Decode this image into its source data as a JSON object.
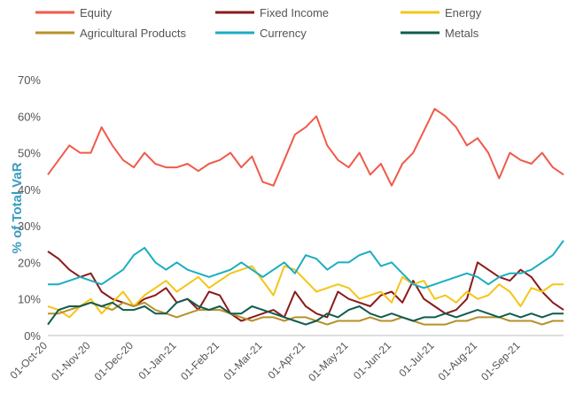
{
  "chart_data": {
    "type": "line",
    "y_label": "% of Total VaR",
    "categories": [
      "01-Oct-20",
      null,
      null,
      null,
      "01-Nov-20",
      null,
      null,
      null,
      "01-Dec-20",
      null,
      null,
      null,
      "01-Jan-21",
      null,
      null,
      null,
      "01-Feb-21",
      null,
      null,
      null,
      "01-Mar-21",
      null,
      null,
      null,
      "01-Apr-21",
      null,
      null,
      null,
      "01-May-21",
      null,
      null,
      null,
      "01-Jun-21",
      null,
      null,
      null,
      "01-Jul-21",
      null,
      null,
      null,
      "01-Aug-21",
      null,
      null,
      null,
      "01-Sep-21",
      null,
      null,
      null,
      null
    ],
    "ylim": [
      0,
      70
    ],
    "yticks": [
      {
        "value": 0,
        "label": "0%"
      },
      {
        "value": 10,
        "label": "10%"
      },
      {
        "value": 20,
        "label": "20%"
      },
      {
        "value": 30,
        "label": "30%"
      },
      {
        "value": 40,
        "label": "40%"
      },
      {
        "value": 50,
        "label": "50%"
      },
      {
        "value": 60,
        "label": "60%"
      },
      {
        "value": 70,
        "label": "70%"
      }
    ],
    "grid": false,
    "series": [
      {
        "name": "Equity",
        "color": "#f05a4a",
        "values": [
          44,
          48,
          52,
          50,
          50,
          57,
          52,
          48,
          46,
          50,
          47,
          46,
          46,
          47,
          45,
          47,
          48,
          50,
          46,
          49,
          42,
          41,
          48,
          55,
          57,
          60,
          52,
          48,
          46,
          50,
          44,
          47,
          41,
          47,
          50,
          56,
          62,
          60,
          57,
          52,
          54,
          50,
          43,
          50,
          48,
          47,
          50,
          46,
          44
        ]
      },
      {
        "name": "Fixed Income",
        "color": "#8b1a1a",
        "values": [
          23,
          21,
          18,
          16,
          17,
          12,
          10,
          9,
          8,
          10,
          11,
          13,
          9,
          10,
          7,
          12,
          11,
          6,
          4,
          5,
          6,
          7,
          5,
          12,
          8,
          6,
          5,
          12,
          10,
          9,
          8,
          11,
          12,
          9,
          15,
          10,
          8,
          6,
          7,
          10,
          20,
          18,
          16,
          15,
          18,
          16,
          12,
          9,
          7
        ]
      },
      {
        "name": "Energy",
        "color": "#f5c518",
        "values": [
          8,
          7,
          5,
          8,
          10,
          6,
          9,
          12,
          8,
          11,
          13,
          15,
          12,
          14,
          16,
          13,
          15,
          17,
          18,
          19,
          15,
          11,
          19,
          18,
          15,
          12,
          13,
          14,
          13,
          10,
          11,
          12,
          9,
          16,
          14,
          15,
          10,
          11,
          9,
          12,
          10,
          11,
          14,
          12,
          8,
          13,
          12,
          14,
          14
        ]
      },
      {
        "name": "Agricultural Products",
        "color": "#b8902a",
        "values": [
          6,
          6,
          7,
          8,
          9,
          8,
          7,
          9,
          8,
          9,
          7,
          6,
          5,
          6,
          7,
          7,
          7,
          6,
          5,
          4,
          5,
          5,
          4,
          5,
          5,
          4,
          3,
          4,
          4,
          4,
          5,
          4,
          4,
          5,
          4,
          3,
          3,
          3,
          4,
          4,
          5,
          5,
          5,
          4,
          4,
          4,
          3,
          4,
          4
        ]
      },
      {
        "name": "Currency",
        "color": "#1aaec0",
        "values": [
          14,
          14,
          15,
          16,
          15,
          14,
          16,
          18,
          22,
          24,
          20,
          18,
          20,
          18,
          17,
          16,
          17,
          18,
          20,
          18,
          16,
          18,
          20,
          17,
          22,
          21,
          18,
          20,
          20,
          22,
          23,
          19,
          20,
          17,
          14,
          13,
          14,
          15,
          16,
          17,
          16,
          14,
          16,
          17,
          17,
          18,
          20,
          22,
          26
        ]
      },
      {
        "name": "Metals",
        "color": "#0f5c4f",
        "values": [
          3,
          7,
          8,
          8,
          9,
          8,
          9,
          7,
          7,
          8,
          6,
          6,
          9,
          10,
          8,
          7,
          8,
          6,
          6,
          8,
          7,
          6,
          5,
          4,
          3,
          4,
          6,
          5,
          7,
          8,
          6,
          5,
          6,
          5,
          4,
          5,
          5,
          6,
          5,
          6,
          7,
          6,
          5,
          6,
          5,
          6,
          5,
          6,
          6
        ]
      }
    ]
  }
}
